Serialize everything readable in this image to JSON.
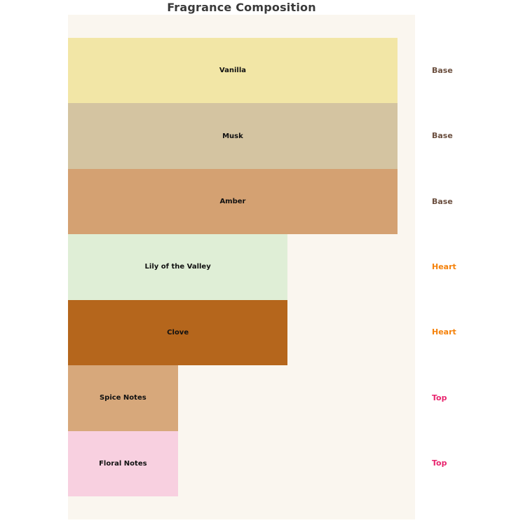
{
  "title": "Fragrance Composition",
  "colors": {
    "page_background": "#ffffff",
    "plot_background": "#faf6ef",
    "title_text": "#3a3a3a",
    "bar_label_text": "#111111"
  },
  "chart_data": {
    "type": "bar",
    "orientation": "horizontal",
    "title": "Fragrance Composition",
    "xlabel": "",
    "ylabel": "",
    "grid": false,
    "xlim": [
      0,
      3.16
    ],
    "categories": [
      "Vanilla",
      "Musk",
      "Amber",
      "Lily of the Valley",
      "Clove",
      "Spice Notes",
      "Floral Notes"
    ],
    "values": [
      3,
      3,
      3,
      2,
      2,
      1,
      1
    ],
    "groups": [
      "Base",
      "Base",
      "Base",
      "Heart",
      "Heart",
      "Top",
      "Top"
    ],
    "bar_colors": [
      "#f2e6a6",
      "#d4c4a1",
      "#d4a172",
      "#dfeed6",
      "#b5661c",
      "#d7a87b",
      "#f8d0e0"
    ],
    "group_label_colors": {
      "Base": "#6b4f3f",
      "Heart": "#f5820b",
      "Top": "#e8256e"
    },
    "legend_position": "right-of-bars"
  }
}
